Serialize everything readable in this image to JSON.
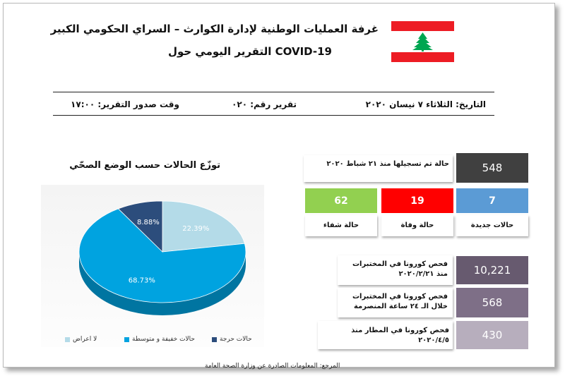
{
  "header": {
    "title_line1": "غرفة العمليات الوطنية لإدارة الكوارث – السراي الحكومي الكبير",
    "title_line2": "التقرير اليومي حول COVID-19"
  },
  "report_info": {
    "date": "التاريخ: الثلاثاء ٧ نيسان ٢٠٢٠",
    "report_number": "تقرير رقم: ٠٢٠",
    "issue_time": "وقت صدور التقرير: ١٧:٠٠"
  },
  "stats": {
    "total_cases": {
      "label": "حالة تم تسجيلها منذ ٢١ شباط ٢٠٢٠",
      "value": "548",
      "color": "#404040"
    },
    "recovered": {
      "label": "حالة شفاء",
      "value": "62",
      "color": "#92d050"
    },
    "deaths": {
      "label": "حالة وفاة",
      "value": "19",
      "color": "#ff0000"
    },
    "new_cases": {
      "label": "حالات جديدة",
      "value": "7",
      "color": "#5b9bd5"
    },
    "lab_tests_total": {
      "label": "فحص كورونا في المختبرات منذ ٢٠٢٠/٢/٢١",
      "value": "10,221",
      "color": "#675a6f"
    },
    "lab_tests_24h": {
      "label": "فحص كورونا في المختبرات خلال الـ ٢٤ ساعة المنصرمة",
      "value": "568",
      "color": "#7e6f87"
    },
    "airport_tests": {
      "label": "فحص كورونا في المطار منذ ٢٠٢٠/٤/٥",
      "value": "430",
      "color": "#b7aebd"
    }
  },
  "chart_data": {
    "type": "pie",
    "title": "توزّع الحالات حسب الوضع الصحّي",
    "slices": [
      {
        "label": "لا اعراض",
        "value": 22.39,
        "display": "22.39%",
        "color": "#b4dbe8"
      },
      {
        "label": "حالات خفيفة و متوسطة",
        "value": 68.73,
        "display": "68.73%",
        "color": "#00a3e0"
      },
      {
        "label": "حالات حرجة",
        "value": 8.88,
        "display": "8.88%",
        "color": "#2c4d7c"
      }
    ]
  },
  "footer": {
    "source": "المرجع: المعلومات الصادرة عن وزارة الصحة العامة"
  }
}
